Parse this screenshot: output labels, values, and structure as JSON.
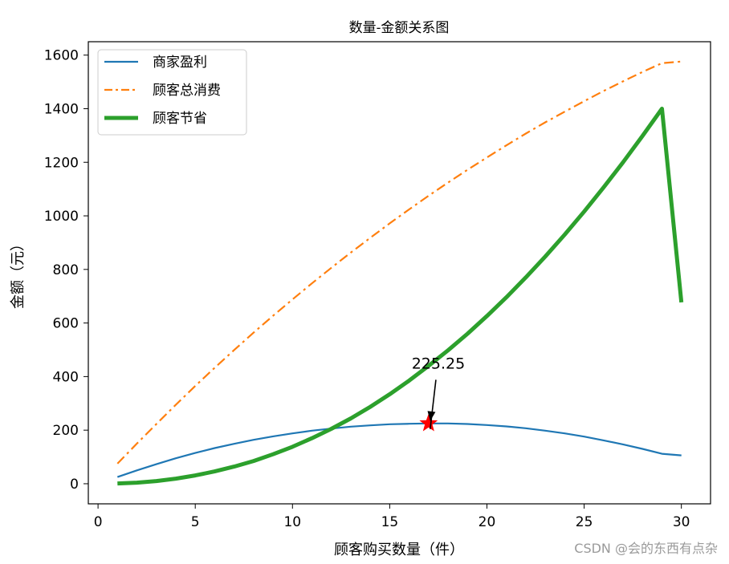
{
  "chart_data": {
    "type": "line",
    "title": "数量-金额关系图",
    "xlabel": "顾客购买数量（件）",
    "ylabel": "金额（元）",
    "xlim": [
      -0.5,
      31.5
    ],
    "ylim": [
      -75,
      1650
    ],
    "x_ticks": [
      0,
      5,
      10,
      15,
      20,
      25,
      30
    ],
    "y_ticks": [
      0,
      200,
      400,
      600,
      800,
      1000,
      1200,
      1400,
      1600
    ],
    "grid": false,
    "legend_position": "top-left",
    "x": [
      1,
      2,
      3,
      4,
      5,
      6,
      7,
      8,
      9,
      10,
      11,
      12,
      13,
      14,
      15,
      16,
      17,
      18,
      19,
      20,
      21,
      22,
      23,
      24,
      25,
      26,
      27,
      28,
      29,
      30
    ],
    "series": [
      {
        "name": "商家盈利",
        "color": "#1f77b4",
        "style": "solid",
        "values": [
          25,
          50,
          73,
          95,
          115,
          133,
          149,
          164,
          177,
          188,
          198,
          206,
          213,
          218,
          222,
          224,
          225,
          225,
          223,
          219,
          214,
          207,
          198,
          188,
          176,
          162,
          147,
          130,
          112,
          106
        ]
      },
      {
        "name": "顾客总消费",
        "color": "#ff7f0e",
        "style": "dashdot",
        "values": [
          75,
          150,
          223,
          295,
          365,
          433,
          499,
          564,
          627,
          688,
          748,
          806,
          863,
          918,
          972,
          1024,
          1075,
          1124,
          1172,
          1218,
          1263,
          1307,
          1349,
          1389,
          1428,
          1466,
          1502,
          1537,
          1570,
          1576
        ]
      },
      {
        "name": "顾客节省",
        "color": "#2ca02c",
        "style": "thick",
        "values": [
          1,
          4,
          10,
          19,
          31,
          46,
          64,
          85,
          110,
          138,
          170,
          205,
          244,
          287,
          334,
          385,
          440,
          498,
          560,
          626,
          696,
          770,
          848,
          930,
          1016,
          1106,
          1200,
          1298,
          1400,
          677
        ]
      }
    ],
    "annotation": {
      "text": "225.25",
      "x": 17,
      "y": 225.25,
      "text_x": 17.5,
      "text_y": 430,
      "marker": "star",
      "marker_color": "#ff0000"
    }
  },
  "watermark": "CSDN @会的东西有点杂"
}
